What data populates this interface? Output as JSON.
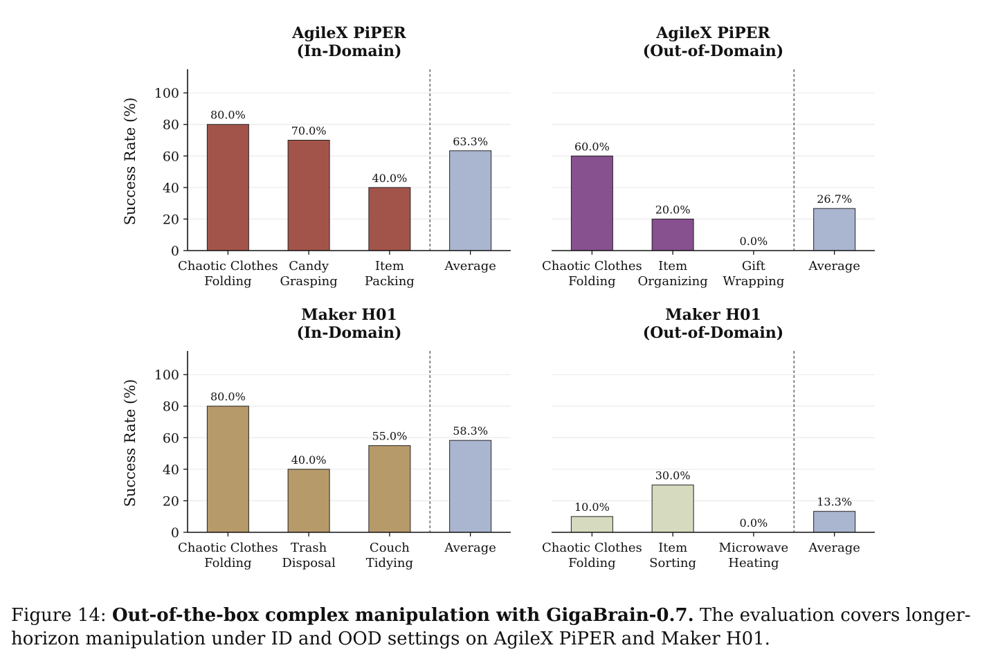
{
  "chart_data": [
    {
      "type": "bar",
      "title": [
        "AgileX PiPER",
        "(In-Domain)"
      ],
      "ylabel": "Success Rate (%)",
      "ylim": [
        0,
        115
      ],
      "yticks": [
        0,
        20,
        40,
        60,
        80,
        100
      ],
      "categories": [
        [
          "Chaotic Clothes",
          "Folding"
        ],
        [
          "Candy",
          "Grasping"
        ],
        [
          "Item",
          "Packing"
        ],
        [
          "Average"
        ]
      ],
      "values": [
        80.0,
        70.0,
        40.0,
        63.3
      ],
      "value_labels": [
        "80.0%",
        "70.0%",
        "40.0%",
        "63.3%"
      ],
      "colors": [
        "#a3544a",
        "#a3544a",
        "#a3544a",
        "#aab6d0"
      ],
      "average_separator": true,
      "grid": "horizontal"
    },
    {
      "type": "bar",
      "title": [
        "AgileX PiPER",
        "(Out-of-Domain)"
      ],
      "ylabel": "",
      "ylim": [
        0,
        115
      ],
      "yticks": [],
      "categories": [
        [
          "Chaotic Clothes",
          "Folding"
        ],
        [
          "Item",
          "Organizing"
        ],
        [
          "Gift",
          "Wrapping"
        ],
        [
          "Average"
        ]
      ],
      "values": [
        60.0,
        20.0,
        0.0,
        26.7
      ],
      "value_labels": [
        "60.0%",
        "20.0%",
        "0.0%",
        "26.7%"
      ],
      "colors": [
        "#87508f",
        "#87508f",
        "#87508f",
        "#aab6d0"
      ],
      "average_separator": true,
      "grid": "horizontal"
    },
    {
      "type": "bar",
      "title": [
        "Maker H01",
        "(In-Domain)"
      ],
      "ylabel": "Success Rate (%)",
      "ylim": [
        0,
        115
      ],
      "yticks": [
        0,
        20,
        40,
        60,
        80,
        100
      ],
      "categories": [
        [
          "Chaotic Clothes",
          "Folding"
        ],
        [
          "Trash",
          "Disposal"
        ],
        [
          "Couch",
          "Tidying"
        ],
        [
          "Average"
        ]
      ],
      "values": [
        80.0,
        40.0,
        55.0,
        58.3
      ],
      "value_labels": [
        "80.0%",
        "40.0%",
        "55.0%",
        "58.3%"
      ],
      "colors": [
        "#b79a6a",
        "#b79a6a",
        "#b79a6a",
        "#aab6d0"
      ],
      "average_separator": true,
      "grid": "horizontal"
    },
    {
      "type": "bar",
      "title": [
        "Maker H01",
        "(Out-of-Domain)"
      ],
      "ylabel": "",
      "ylim": [
        0,
        115
      ],
      "yticks": [],
      "categories": [
        [
          "Chaotic Clothes",
          "Folding"
        ],
        [
          "Item",
          "Sorting"
        ],
        [
          "Microwave",
          "Heating"
        ],
        [
          "Average"
        ]
      ],
      "values": [
        10.0,
        30.0,
        0.0,
        13.3
      ],
      "value_labels": [
        "10.0%",
        "30.0%",
        "0.0%",
        "13.3%"
      ],
      "colors": [
        "#d6dbc0",
        "#d6dbc0",
        "#d6dbc0",
        "#aab6d0"
      ],
      "average_separator": true,
      "grid": "horizontal"
    }
  ],
  "caption": {
    "prefix": "Figure 14: ",
    "bold": "Out-of-the-box complex manipulation with GigaBrain-0.7.",
    "rest": " The evaluation covers longer-horizon manipulation under ID and OOD settings on AgileX PiPER and Maker H01."
  }
}
